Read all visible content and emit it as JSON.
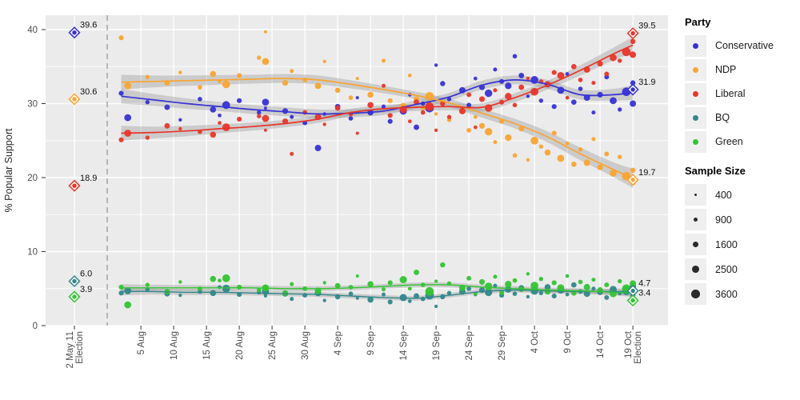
{
  "chart_data": {
    "type": "scatter",
    "title": "",
    "xlabel": "",
    "ylabel": "% Popular Support",
    "ylim": [
      0,
      40
    ],
    "yticks": [
      0,
      10,
      20,
      30,
      40
    ],
    "ytick_labels": [
      "0",
      "10",
      "20",
      "30",
      "40"
    ],
    "yticks_minor": [
      5,
      15,
      25,
      35
    ],
    "grid": "on",
    "legend_position": "right",
    "legend": {
      "party_title": "Party",
      "size_title": "Sample Size"
    },
    "election_tick": {
      "label": "2 May 11",
      "label2": "Election"
    },
    "xticks": [
      {
        "day": 3,
        "label": "5 Aug"
      },
      {
        "day": 8,
        "label": "10 Aug"
      },
      {
        "day": 13,
        "label": "15 Aug"
      },
      {
        "day": 18,
        "label": "20 Aug"
      },
      {
        "day": 23,
        "label": "25 Aug"
      },
      {
        "day": 28,
        "label": "30 Aug"
      },
      {
        "day": 33,
        "label": "4 Sep"
      },
      {
        "day": 38,
        "label": "9 Sep"
      },
      {
        "day": 43,
        "label": "14 Sep"
      },
      {
        "day": 48,
        "label": "19 Sep"
      },
      {
        "day": 53,
        "label": "24 Sep"
      },
      {
        "day": 58,
        "label": "29 Sep"
      },
      {
        "day": 63,
        "label": "4 Oct"
      },
      {
        "day": 68,
        "label": "9 Oct"
      },
      {
        "day": 73,
        "label": "14 Oct"
      },
      {
        "day": 78,
        "label": "19 Oct",
        "label2": "Election"
      }
    ],
    "parties": [
      {
        "id": "con",
        "name": "Conservative",
        "color": "#3732d4"
      },
      {
        "id": "ndp",
        "name": "NDP",
        "color": "#f9a432"
      },
      {
        "id": "lib",
        "name": "Liberal",
        "color": "#e8352a"
      },
      {
        "id": "bq",
        "name": "BQ",
        "color": "#31878a"
      },
      {
        "id": "grn",
        "name": "Green",
        "color": "#33c433"
      }
    ],
    "sample_size_legend": [
      400,
      900,
      1600,
      2500,
      3600
    ],
    "past_election": {
      "items": [
        {
          "party": "con",
          "value": 39.6,
          "label": "39.6"
        },
        {
          "party": "ndp",
          "value": 30.6,
          "label": "30.6"
        },
        {
          "party": "lib",
          "value": 18.9,
          "label": "18.9"
        },
        {
          "party": "bq",
          "value": 6.0,
          "label": "6.0"
        },
        {
          "party": "grn",
          "value": 3.9,
          "label": "3.9"
        }
      ]
    },
    "final_election": {
      "items": [
        {
          "party": "lib",
          "value": 39.5,
          "label": "39.5"
        },
        {
          "party": "con",
          "value": 31.9,
          "label": "31.9"
        },
        {
          "party": "ndp",
          "value": 19.7,
          "label": "19.7"
        },
        {
          "party": "bq",
          "value": 4.7,
          "label": "4.7"
        },
        {
          "party": "grn",
          "value": 3.4,
          "label": "3.4"
        }
      ]
    },
    "trend_days": [
      0,
      5,
      10,
      15,
      20,
      25,
      30,
      35,
      40,
      45,
      50,
      55,
      60,
      65,
      70,
      75,
      78
    ],
    "trend": {
      "con": [
        31.0,
        30.5,
        30.0,
        29.6,
        29.2,
        28.9,
        28.6,
        28.7,
        29.0,
        29.9,
        30.9,
        32.5,
        33.2,
        32.6,
        31.2,
        31.2,
        31.5
      ],
      "ndp": [
        32.9,
        33.0,
        33.1,
        33.2,
        33.3,
        33.4,
        33.2,
        32.6,
        31.9,
        31.1,
        30.1,
        28.7,
        27.3,
        25.5,
        23.2,
        21.1,
        19.9
      ],
      "lib": [
        26.0,
        26.1,
        26.3,
        26.6,
        26.9,
        27.3,
        27.9,
        28.8,
        29.3,
        29.5,
        29.6,
        29.5,
        30.8,
        32.5,
        34.5,
        36.7,
        37.9
      ],
      "bq": [
        4.6,
        4.6,
        4.5,
        4.5,
        4.4,
        4.3,
        4.2,
        4.0,
        3.8,
        3.7,
        4.1,
        4.6,
        4.8,
        4.7,
        4.6,
        4.6,
        4.5
      ],
      "grn": [
        5.1,
        5.1,
        5.1,
        5.1,
        5.1,
        5.0,
        5.0,
        5.1,
        5.3,
        5.5,
        5.5,
        5.2,
        5.0,
        4.8,
        4.7,
        4.5,
        4.4
      ]
    },
    "band": {
      "con": [
        1.0,
        0.8,
        0.7,
        0.6,
        0.6,
        0.6,
        0.6,
        0.55,
        0.55,
        0.55,
        0.55,
        0.6,
        0.6,
        0.6,
        0.65,
        0.8,
        1.0
      ],
      "ndp": [
        1.0,
        0.8,
        0.7,
        0.65,
        0.6,
        0.6,
        0.6,
        0.55,
        0.5,
        0.5,
        0.55,
        0.6,
        0.65,
        0.75,
        0.85,
        1.0,
        1.3
      ],
      "lib": [
        1.0,
        0.8,
        0.7,
        0.6,
        0.55,
        0.5,
        0.5,
        0.5,
        0.5,
        0.5,
        0.5,
        0.55,
        0.6,
        0.6,
        0.7,
        0.85,
        1.1
      ],
      "bq": [
        0.5,
        0.42,
        0.38,
        0.35,
        0.33,
        0.32,
        0.32,
        0.32,
        0.32,
        0.32,
        0.32,
        0.32,
        0.32,
        0.33,
        0.35,
        0.42,
        0.55
      ],
      "grn": [
        0.5,
        0.42,
        0.38,
        0.35,
        0.33,
        0.32,
        0.32,
        0.32,
        0.32,
        0.32,
        0.32,
        0.32,
        0.32,
        0.33,
        0.35,
        0.42,
        0.55
      ]
    },
    "polls": [
      {
        "d": 0,
        "n": 1200,
        "con": 31.4,
        "ndp": 38.9,
        "lib": 25.1,
        "bq": 4.4,
        "grn": 5.2
      },
      {
        "d": 1,
        "n": 2400,
        "con": 28.1,
        "ndp": 32.4,
        "lib": 26.0,
        "bq": 4.7,
        "grn": 2.8
      },
      {
        "d": 4,
        "n": 900,
        "con": 30.2,
        "ndp": 33.6,
        "lib": 25.4,
        "bq": 4.9,
        "grn": 5.5
      },
      {
        "d": 7,
        "n": 1500,
        "con": 29.5,
        "ndp": 32.8,
        "lib": 27.0,
        "bq": 4.3,
        "grn": 4.6
      },
      {
        "d": 9,
        "n": 600,
        "con": 27.8,
        "ndp": 34.2,
        "lib": 26.6,
        "bq": 4.1,
        "grn": 5.9
      },
      {
        "d": 12,
        "n": 1000,
        "con": 30.6,
        "ndp": 32.2,
        "lib": 26.2,
        "bq": 4.6,
        "grn": 5.0
      },
      {
        "d": 14,
        "n": 1800,
        "con": 29.2,
        "ndp": 34.0,
        "lib": 25.8,
        "bq": 4.4,
        "grn": 6.3
      },
      {
        "d": 15,
        "n": 700,
        "con": 28.4,
        "ndp": 33.0,
        "lib": 27.4,
        "bq": 5.2,
        "grn": 6.1
      },
      {
        "d": 16,
        "n": 3000,
        "con": 29.8,
        "ndp": 32.6,
        "lib": 26.8,
        "bq": 5.0,
        "grn": 6.4
      },
      {
        "d": 18,
        "n": 1200,
        "con": 30.4,
        "ndp": 33.8,
        "lib": 27.9,
        "bq": 4.2,
        "grn": 5.2
      },
      {
        "d": 21,
        "n": 900,
        "con": 28.8,
        "ndp": 36.2,
        "lib": 28.3,
        "bq": 4.5,
        "grn": 4.8
      },
      {
        "d": 22,
        "n": 500,
        "con": 29.4,
        "ndp": 39.7,
        "lib": 26.4,
        "bq": 4.0,
        "grn": 5.3
      },
      {
        "d": 22,
        "n": 2400,
        "con": 30.2,
        "ndp": 35.7,
        "lib": 28.0,
        "bq": 4.6,
        "grn": 5.1
      },
      {
        "d": 25,
        "n": 1600,
        "con": 29.0,
        "ndp": 32.8,
        "lib": 27.6,
        "bq": 4.3,
        "grn": 4.4
      },
      {
        "d": 26,
        "n": 800,
        "con": 28.2,
        "ndp": 34.4,
        "lib": 23.2,
        "bq": 3.6,
        "grn": 5.6
      },
      {
        "d": 28,
        "n": 1100,
        "con": 27.4,
        "ndp": 33.2,
        "lib": 28.8,
        "bq": 4.1,
        "grn": 5.0
      },
      {
        "d": 30,
        "n": 2000,
        "con": 24.0,
        "ndp": 32.4,
        "lib": 28.2,
        "bq": 4.4,
        "grn": 4.7
      },
      {
        "d": 31,
        "n": 600,
        "con": 28.6,
        "ndp": 35.7,
        "lib": 27.2,
        "bq": 3.4,
        "grn": 5.8
      },
      {
        "d": 33,
        "n": 1400,
        "con": 29.6,
        "ndp": 31.8,
        "lib": 29.4,
        "bq": 3.9,
        "grn": 5.4
      },
      {
        "d": 35,
        "n": 1000,
        "con": 28.0,
        "ndp": 30.8,
        "lib": 28.6,
        "bq": 4.3,
        "grn": 5.2
      },
      {
        "d": 36,
        "n": 500,
        "con": 30.8,
        "ndp": 33.4,
        "lib": 26.0,
        "bq": 3.7,
        "grn": 6.7
      },
      {
        "d": 38,
        "n": 1800,
        "con": 28.8,
        "ndp": 31.2,
        "lib": 29.8,
        "bq": 3.5,
        "grn": 5.6
      },
      {
        "d": 40,
        "n": 800,
        "con": 29.6,
        "ndp": 35.8,
        "lib": 32.4,
        "bq": 4.2,
        "grn": 4.9
      },
      {
        "d": 41,
        "n": 1200,
        "con": 27.6,
        "ndp": 30.4,
        "lib": 28.4,
        "bq": 3.2,
        "grn": 5.8
      },
      {
        "d": 43,
        "n": 2600,
        "con": 29.0,
        "ndp": 29.6,
        "lib": 29.2,
        "bq": 3.8,
        "grn": 6.2
      },
      {
        "d": 44,
        "n": 700,
        "con": 31.2,
        "ndp": 33.8,
        "lib": 27.6,
        "bq": 3.3,
        "grn": 5.0
      },
      {
        "d": 45,
        "n": 1500,
        "con": 26.8,
        "ndp": 30.6,
        "lib": 30.2,
        "bq": 4.0,
        "grn": 7.2
      },
      {
        "d": 46,
        "n": 1000,
        "con": 30.0,
        "ndp": 29.4,
        "lib": 28.8,
        "bq": 3.6,
        "grn": 5.5
      },
      {
        "d": 47,
        "n": 3600,
        "con": 29.4,
        "ndp": 31.0,
        "lib": 29.6,
        "bq": 4.1,
        "grn": 4.6
      },
      {
        "d": 48,
        "n": 600,
        "con": 35.2,
        "ndp": 28.6,
        "lib": 26.4,
        "bq": 2.6,
        "grn": 6.0
      },
      {
        "d": 49,
        "n": 1300,
        "con": 32.7,
        "ndp": 30.2,
        "lib": 30.0,
        "bq": 3.9,
        "grn": 8.2
      },
      {
        "d": 50,
        "n": 900,
        "con": 30.6,
        "ndp": 27.8,
        "lib": 28.2,
        "bq": 4.4,
        "grn": 5.7
      },
      {
        "d": 52,
        "n": 2000,
        "con": 31.8,
        "ndp": 29.0,
        "lib": 29.0,
        "bq": 4.6,
        "grn": 5.1
      },
      {
        "d": 53,
        "n": 1100,
        "con": 29.8,
        "ndp": 26.4,
        "lib": 31.2,
        "bq": 5.0,
        "grn": 6.4
      },
      {
        "d": 54,
        "n": 700,
        "con": 33.4,
        "ndp": 28.2,
        "lib": 26.8,
        "bq": 4.2,
        "grn": 4.3
      },
      {
        "d": 55,
        "n": 1600,
        "con": 32.2,
        "ndp": 27.0,
        "lib": 30.6,
        "bq": 4.8,
        "grn": 5.9
      },
      {
        "d": 56,
        "n": 2800,
        "con": 31.4,
        "ndp": 26.2,
        "lib": 29.4,
        "bq": 4.5,
        "grn": 5.3
      },
      {
        "d": 57,
        "n": 800,
        "con": 34.6,
        "ndp": 24.8,
        "lib": 31.8,
        "bq": 5.4,
        "grn": 6.6
      },
      {
        "d": 58,
        "n": 1200,
        "con": 33.0,
        "ndp": 27.6,
        "lib": 30.2,
        "bq": 4.1,
        "grn": 4.5
      },
      {
        "d": 59,
        "n": 2200,
        "con": 32.4,
        "ndp": 25.4,
        "lib": 31.0,
        "bq": 4.9,
        "grn": 5.6
      },
      {
        "d": 60,
        "n": 1000,
        "con": 36.4,
        "ndp": 23.0,
        "lib": 29.8,
        "bq": 4.3,
        "grn": 6.1
      },
      {
        "d": 61,
        "n": 1500,
        "con": 33.8,
        "ndp": 26.6,
        "lib": 32.2,
        "bq": 5.1,
        "grn": 4.9
      },
      {
        "d": 62,
        "n": 600,
        "con": 31.0,
        "ndp": 22.4,
        "lib": 33.4,
        "bq": 3.9,
        "grn": 7.0
      },
      {
        "d": 63,
        "n": 3000,
        "con": 33.2,
        "ndp": 25.0,
        "lib": 31.6,
        "bq": 4.7,
        "grn": 5.4
      },
      {
        "d": 64,
        "n": 900,
        "con": 30.4,
        "ndp": 24.2,
        "lib": 33.0,
        "bq": 4.4,
        "grn": 6.3
      },
      {
        "d": 65,
        "n": 1800,
        "con": 32.6,
        "ndp": 23.4,
        "lib": 32.6,
        "bq": 5.2,
        "grn": 4.6
      },
      {
        "d": 66,
        "n": 1200,
        "con": 29.6,
        "ndp": 26.0,
        "lib": 34.2,
        "bq": 4.0,
        "grn": 5.8
      },
      {
        "d": 67,
        "n": 2500,
        "con": 31.8,
        "ndp": 22.6,
        "lib": 33.8,
        "bq": 4.8,
        "grn": 5.1
      },
      {
        "d": 68,
        "n": 700,
        "con": 34.0,
        "ndp": 24.6,
        "lib": 30.8,
        "bq": 4.2,
        "grn": 6.7
      },
      {
        "d": 69,
        "n": 1400,
        "con": 30.2,
        "ndp": 21.8,
        "lib": 35.0,
        "bq": 5.5,
        "grn": 4.4
      },
      {
        "d": 70,
        "n": 1000,
        "con": 32.0,
        "ndp": 23.8,
        "lib": 33.2,
        "bq": 4.6,
        "grn": 5.9
      },
      {
        "d": 71,
        "n": 2000,
        "con": 30.8,
        "ndp": 22.0,
        "lib": 34.6,
        "bq": 4.3,
        "grn": 5.2
      },
      {
        "d": 72,
        "n": 800,
        "con": 28.8,
        "ndp": 25.2,
        "lib": 32.8,
        "bq": 5.0,
        "grn": 6.2
      },
      {
        "d": 73,
        "n": 1600,
        "con": 31.2,
        "ndp": 21.4,
        "lib": 35.4,
        "bq": 4.5,
        "grn": 4.8
      },
      {
        "d": 74,
        "n": 1100,
        "con": 33.6,
        "ndp": 23.2,
        "lib": 34.0,
        "bq": 3.8,
        "grn": 5.5
      },
      {
        "d": 75,
        "n": 2400,
        "con": 30.4,
        "ndp": 20.6,
        "lib": 36.2,
        "bq": 4.9,
        "grn": 4.3
      },
      {
        "d": 76,
        "n": 900,
        "con": 29.2,
        "ndp": 22.8,
        "lib": 35.8,
        "bq": 4.4,
        "grn": 6.0
      },
      {
        "d": 77,
        "n": 3600,
        "con": 31.6,
        "ndp": 20.2,
        "lib": 37.0,
        "bq": 4.7,
        "grn": 5.0
      },
      {
        "d": 78,
        "n": 1300,
        "con": 32.8,
        "ndp": 21.0,
        "lib": 38.4,
        "bq": 4.1,
        "grn": 4.5
      },
      {
        "d": 78,
        "n": 2000,
        "con": 30.0,
        "ndp": 19.4,
        "lib": 36.6,
        "bq": 5.3,
        "grn": 5.7
      }
    ],
    "style": {
      "panel_bg": "#ebebeb",
      "grid_color": "#ffffff",
      "band_color": "#8c8c8c",
      "dashed_line_color": "#999999",
      "tick_text_color": "#4d4d4d",
      "size_dot_color": "#2a2a2a"
    }
  }
}
